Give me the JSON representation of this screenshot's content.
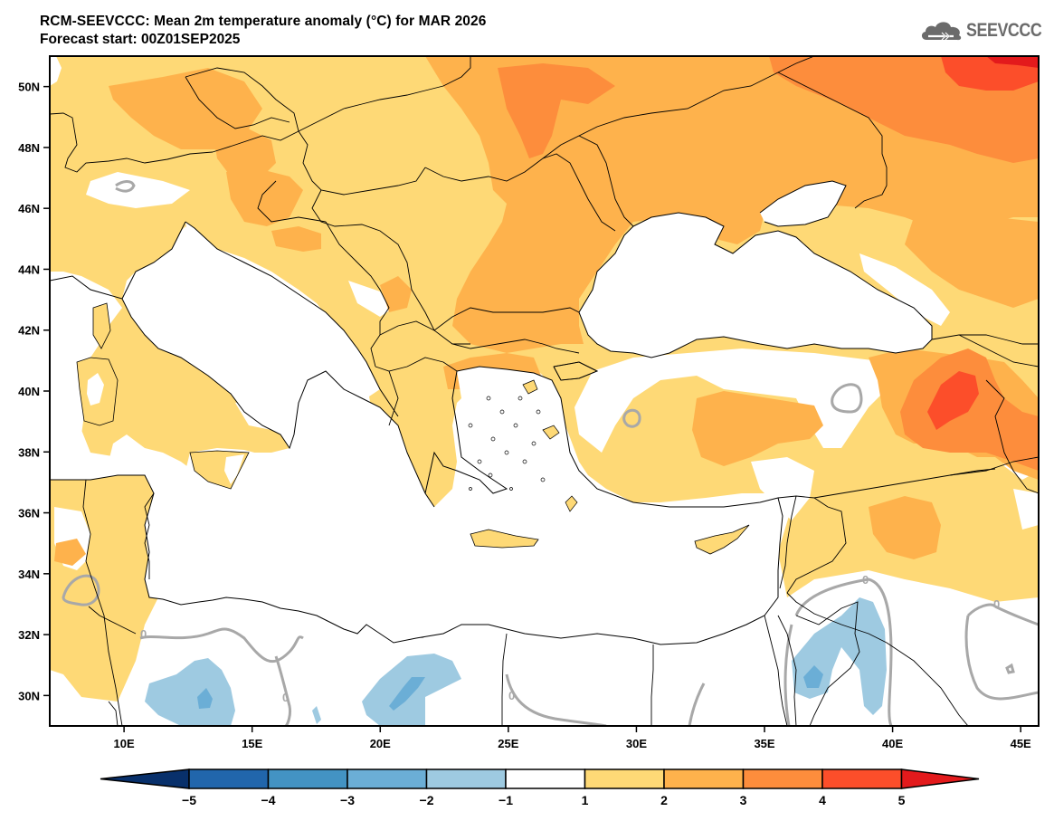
{
  "header": {
    "title": "RCM-SEEVCCC: Mean 2m temperature anomaly (°C) for MAR 2026",
    "subtitle": "Forecast start: 00Z01SEP2025",
    "logo_text": "SEEVCCC",
    "logo_icon": "cloud-icon"
  },
  "map": {
    "variable": "Mean 2m temperature anomaly",
    "units": "°C",
    "lon_range": [
      7.1,
      45.7
    ],
    "lat_range": [
      29.0,
      51.0
    ],
    "lon_ticks": [
      {
        "value": 10,
        "label": "10E"
      },
      {
        "value": 15,
        "label": "15E"
      },
      {
        "value": 20,
        "label": "20E"
      },
      {
        "value": 25,
        "label": "25E"
      },
      {
        "value": 30,
        "label": "30E"
      },
      {
        "value": 35,
        "label": "35E"
      },
      {
        "value": 40,
        "label": "40E"
      },
      {
        "value": 45,
        "label": "45E"
      }
    ],
    "lat_ticks": [
      {
        "value": 30,
        "label": "30N"
      },
      {
        "value": 32,
        "label": "32N"
      },
      {
        "value": 34,
        "label": "34N"
      },
      {
        "value": 36,
        "label": "36N"
      },
      {
        "value": 38,
        "label": "38N"
      },
      {
        "value": 40,
        "label": "40N"
      },
      {
        "value": 42,
        "label": "42N"
      },
      {
        "value": 44,
        "label": "44N"
      },
      {
        "value": 46,
        "label": "46N"
      },
      {
        "value": 48,
        "label": "48N"
      },
      {
        "value": 50,
        "label": "50N"
      }
    ],
    "zero_contour_label": "0",
    "regions": [
      {
        "name": "central-europe",
        "anomaly_class": "1-2"
      },
      {
        "name": "ukraine-romania",
        "anomaly_class": "2-3"
      },
      {
        "name": "southern-russia-ne",
        "anomaly_class": "3-4"
      },
      {
        "name": "far-ne-corner",
        "anomaly_class": "4-5"
      },
      {
        "name": "eastern-anatolia",
        "anomaly_class": "4-5"
      },
      {
        "name": "north-africa-libya",
        "anomaly_class": "-2 to -1"
      },
      {
        "name": "jordan-saudi",
        "anomaly_class": "-2 to -1"
      }
    ]
  },
  "colorbar": {
    "labels": [
      "-5",
      "-4",
      "-3",
      "-2",
      "-1",
      "1",
      "2",
      "3",
      "4",
      "5"
    ],
    "colors": {
      "lt_-5": "#08306b",
      "-5_-4": "#2166ac",
      "-4_-3": "#4393c3",
      "-3_-2": "#6baed6",
      "-2_-1": "#9ecae1",
      "-1_1": "#ffffff",
      "1_2": "#fed976",
      "2_3": "#feb24c",
      "3_4": "#fd8d3c",
      "4_5": "#fc4e2a",
      "gt_5": "#e31a1c"
    }
  }
}
